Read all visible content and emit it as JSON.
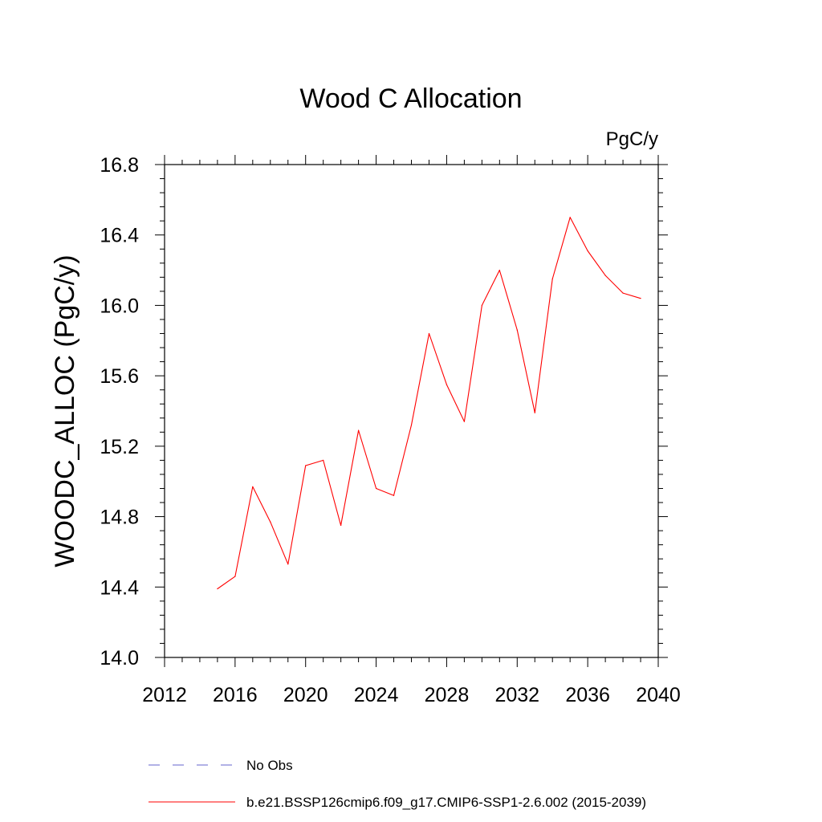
{
  "chart_data": {
    "type": "line",
    "title": "Wood C Allocation",
    "units": "PgC/y",
    "xlabel": "",
    "ylabel": "WOODC_ALLOC  (PgC/y)",
    "xlim": [
      2012,
      2040
    ],
    "ylim": [
      14.0,
      16.8
    ],
    "x_ticks": [
      2012,
      2016,
      2020,
      2024,
      2028,
      2032,
      2036,
      2040
    ],
    "x_tick_labels": [
      "2012",
      "2016",
      "2020",
      "2024",
      "2028",
      "2032",
      "2036",
      "2040"
    ],
    "y_ticks": [
      14.0,
      14.4,
      14.8,
      15.2,
      15.6,
      16.0,
      16.4,
      16.8
    ],
    "y_tick_labels": [
      "14.0",
      "14.4",
      "14.8",
      "15.2",
      "15.6",
      "16.0",
      "16.4",
      "16.8"
    ],
    "grid": false,
    "series": [
      {
        "name": "b.e21.BSSP126cmip6.f09_g17.CMIP6-SSP1-2.6.002 (2015-2039)",
        "color": "#ff0000",
        "style": "solid",
        "x": [
          2015,
          2016,
          2017,
          2018,
          2019,
          2020,
          2021,
          2022,
          2023,
          2024,
          2025,
          2026,
          2027,
          2028,
          2029,
          2030,
          2031,
          2032,
          2033,
          2034,
          2035,
          2036,
          2037,
          2038,
          2039
        ],
        "y": [
          14.39,
          14.46,
          14.97,
          14.77,
          14.53,
          15.09,
          15.12,
          14.75,
          15.29,
          14.96,
          14.92,
          15.32,
          15.84,
          15.55,
          15.34,
          16.0,
          16.2,
          15.86,
          15.39,
          16.15,
          16.5,
          16.31,
          16.17,
          16.07,
          16.04
        ]
      }
    ],
    "legend": {
      "placement": "bottom",
      "entries": [
        {
          "label": "No Obs",
          "color": "#6666cc",
          "style": "dashed"
        },
        {
          "label": "b.e21.BSSP126cmip6.f09_g17.CMIP6-SSP1-2.6.002 (2015-2039)",
          "color": "#ff0000",
          "style": "solid"
        }
      ]
    }
  }
}
